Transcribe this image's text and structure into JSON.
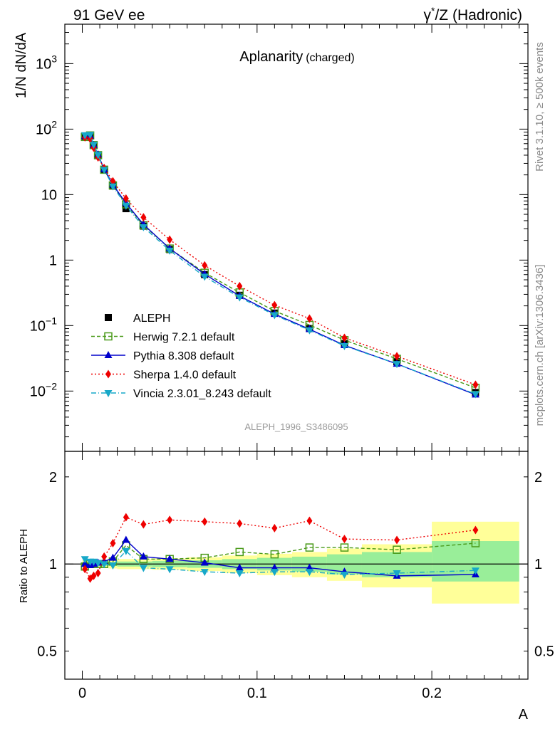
{
  "header": {
    "left": "91 GeV ee",
    "right_pre": "γ",
    "right_sup": "*",
    "right_post": "/Z (Hadronic)"
  },
  "side_labels": {
    "rivet": "Rivet 3.1.10, ≥ 500k events",
    "mcplots": "mcplots.cern.ch [arXiv:1306.3436]"
  },
  "analysis_id": "ALEPH_1996_S3486095",
  "chart_data": [
    {
      "type": "line",
      "title": "Aplanarity",
      "title_suffix": "(charged)",
      "ylabel": "1/N dN/dA",
      "y_scale": "log",
      "xlim": [
        -0.01,
        0.255
      ],
      "ylim": [
        0.0012,
        4000
      ],
      "y_ticks": [
        {
          "v": 0.01,
          "base": "10",
          "exp": "−2"
        },
        {
          "v": 0.1,
          "base": "10",
          "exp": "−1"
        },
        {
          "v": 1,
          "base": "1",
          "exp": ""
        },
        {
          "v": 10,
          "base": "10",
          "exp": ""
        },
        {
          "v": 100,
          "base": "10",
          "exp": "2"
        },
        {
          "v": 1000,
          "base": "10",
          "exp": "3"
        }
      ],
      "legend_position": "bottom-left",
      "x": [
        0.0015,
        0.0045,
        0.0065,
        0.009,
        0.0125,
        0.0175,
        0.025,
        0.035,
        0.05,
        0.07,
        0.09,
        0.11,
        0.13,
        0.15,
        0.18,
        0.225
      ],
      "series": [
        {
          "name": "ALEPH",
          "color": "#000000",
          "marker": "square-filled",
          "dash": "none",
          "values": [
            78,
            80,
            57,
            40,
            24,
            13.5,
            6.1,
            3.3,
            1.45,
            0.6,
            0.29,
            0.155,
            0.09,
            0.053,
            0.028,
            0.0095
          ]
        },
        {
          "name": "Herwig 7.2.1 default",
          "color": "#4a9a1a",
          "marker": "square-open",
          "dash": "5,3",
          "values": [
            76,
            80,
            57,
            40,
            24,
            13.8,
            7.1,
            3.4,
            1.5,
            0.64,
            0.32,
            0.167,
            0.102,
            0.06,
            0.031,
            0.0112
          ]
        },
        {
          "name": "Pythia 8.308 default",
          "color": "#0000cc",
          "marker": "triangle-up",
          "dash": "none",
          "values": [
            78,
            79,
            57,
            41,
            24.5,
            14.2,
            7.4,
            3.5,
            1.5,
            0.61,
            0.283,
            0.15,
            0.088,
            0.05,
            0.026,
            0.0088
          ]
        },
        {
          "name": "Sherpa 1.4.0 default",
          "color": "#ee0000",
          "marker": "diamond",
          "dash": "2,3",
          "values": [
            75,
            71,
            52,
            37,
            25.5,
            16.0,
            8.7,
            4.5,
            2.05,
            0.83,
            0.4,
            0.205,
            0.128,
            0.065,
            0.034,
            0.0125
          ]
        },
        {
          "name": "Vincia 2.3.01_8.243 default",
          "color": "#17a8c8",
          "marker": "triangle-down",
          "dash": "7,3,1,3",
          "values": [
            81,
            82,
            58,
            40.5,
            24,
            13.4,
            6.8,
            3.2,
            1.4,
            0.56,
            0.27,
            0.145,
            0.085,
            0.049,
            0.026,
            0.009
          ]
        }
      ]
    },
    {
      "type": "line",
      "ylabel": "Ratio to ALEPH",
      "xlabel": "A",
      "y_scale": "log",
      "xlim": [
        -0.01,
        0.255
      ],
      "ylim": [
        0.4,
        2.45
      ],
      "x_ticks": [
        {
          "v": 0,
          "label": "0"
        },
        {
          "v": 0.1,
          "label": "0.1"
        },
        {
          "v": 0.2,
          "label": "0.2"
        }
      ],
      "y_ticks": [
        {
          "v": 0.5,
          "label": "0.5"
        },
        {
          "v": 1,
          "label": "1"
        },
        {
          "v": 2,
          "label": "2"
        }
      ],
      "uncertainty_bands": [
        {
          "x0": 0,
          "x1": 0.003,
          "stat_lo": 0.985,
          "stat_hi": 1.015,
          "tot_lo": 0.97,
          "tot_hi": 1.03
        },
        {
          "x0": 0.003,
          "x1": 0.006,
          "stat_lo": 0.985,
          "stat_hi": 1.015,
          "tot_lo": 0.97,
          "tot_hi": 1.03
        },
        {
          "x0": 0.006,
          "x1": 0.0075,
          "stat_lo": 0.985,
          "stat_hi": 1.015,
          "tot_lo": 0.97,
          "tot_hi": 1.03
        },
        {
          "x0": 0.0075,
          "x1": 0.01,
          "stat_lo": 0.985,
          "stat_hi": 1.015,
          "tot_lo": 0.97,
          "tot_hi": 1.03
        },
        {
          "x0": 0.01,
          "x1": 0.015,
          "stat_lo": 0.985,
          "stat_hi": 1.015,
          "tot_lo": 0.97,
          "tot_hi": 1.03
        },
        {
          "x0": 0.015,
          "x1": 0.02,
          "stat_lo": 0.985,
          "stat_hi": 1.015,
          "tot_lo": 0.965,
          "tot_hi": 1.035
        },
        {
          "x0": 0.02,
          "x1": 0.03,
          "stat_lo": 0.98,
          "stat_hi": 1.02,
          "tot_lo": 0.96,
          "tot_hi": 1.04
        },
        {
          "x0": 0.03,
          "x1": 0.04,
          "stat_lo": 0.98,
          "stat_hi": 1.02,
          "tot_lo": 0.96,
          "tot_hi": 1.04
        },
        {
          "x0": 0.04,
          "x1": 0.06,
          "stat_lo": 0.975,
          "stat_hi": 1.025,
          "tot_lo": 0.955,
          "tot_hi": 1.045
        },
        {
          "x0": 0.06,
          "x1": 0.08,
          "stat_lo": 0.97,
          "stat_hi": 1.03,
          "tot_lo": 0.945,
          "tot_hi": 1.055
        },
        {
          "x0": 0.08,
          "x1": 0.1,
          "stat_lo": 0.96,
          "stat_hi": 1.04,
          "tot_lo": 0.93,
          "tot_hi": 1.07
        },
        {
          "x0": 0.1,
          "x1": 0.12,
          "stat_lo": 0.95,
          "stat_hi": 1.05,
          "tot_lo": 0.915,
          "tot_hi": 1.085
        },
        {
          "x0": 0.12,
          "x1": 0.14,
          "stat_lo": 0.94,
          "stat_hi": 1.06,
          "tot_lo": 0.9,
          "tot_hi": 1.1
        },
        {
          "x0": 0.14,
          "x1": 0.16,
          "stat_lo": 0.92,
          "stat_hi": 1.08,
          "tot_lo": 0.875,
          "tot_hi": 1.13
        },
        {
          "x0": 0.16,
          "x1": 0.2,
          "stat_lo": 0.9,
          "stat_hi": 1.1,
          "tot_lo": 0.83,
          "tot_hi": 1.17
        },
        {
          "x0": 0.2,
          "x1": 0.25,
          "stat_lo": 0.87,
          "stat_hi": 1.2,
          "tot_lo": 0.73,
          "tot_hi": 1.4
        }
      ],
      "series": [
        {
          "name": "Herwig 7.2.1 default",
          "color": "#4a9a1a",
          "marker": "square-open",
          "dash": "5,3",
          "values": [
            0.98,
            1.0,
            1.0,
            1.0,
            1.0,
            1.02,
            1.16,
            1.04,
            1.04,
            1.05,
            1.1,
            1.08,
            1.14,
            1.14,
            1.12,
            1.18
          ]
        },
        {
          "name": "Pythia 8.308 default",
          "color": "#0000cc",
          "marker": "triangle-up",
          "dash": "none",
          "values": [
            1.0,
            0.99,
            1.0,
            1.01,
            1.02,
            1.05,
            1.21,
            1.06,
            1.04,
            1.01,
            0.97,
            0.97,
            0.97,
            0.94,
            0.91,
            0.92
          ]
        },
        {
          "name": "Sherpa 1.4.0 default",
          "color": "#ee0000",
          "marker": "diamond",
          "dash": "2,3",
          "values": [
            0.96,
            0.89,
            0.91,
            0.93,
            1.06,
            1.18,
            1.45,
            1.37,
            1.42,
            1.4,
            1.38,
            1.33,
            1.41,
            1.22,
            1.21,
            1.31
          ]
        },
        {
          "name": "Vincia 2.3.01_8.243 default",
          "color": "#17a8c8",
          "marker": "triangle-down",
          "dash": "7,3,1,3",
          "values": [
            1.04,
            1.02,
            1.02,
            1.01,
            1.0,
            0.99,
            1.11,
            0.97,
            0.96,
            0.94,
            0.93,
            0.94,
            0.94,
            0.92,
            0.93,
            0.95
          ]
        }
      ]
    }
  ]
}
